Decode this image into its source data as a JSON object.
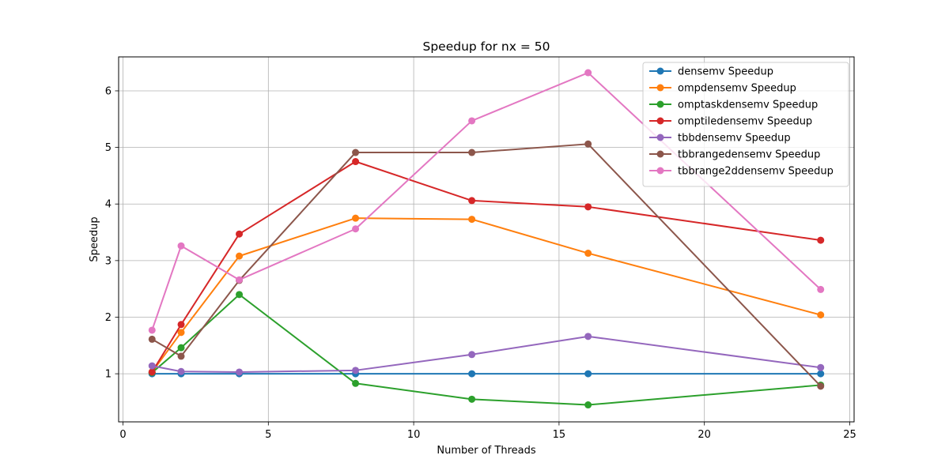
{
  "chart_data": {
    "type": "line",
    "title": "Speedup for nx = 50",
    "xlabel": "Number of Threads",
    "ylabel": "Speedup",
    "xlim": [
      -0.15,
      25.15
    ],
    "ylim": [
      0.15,
      6.6
    ],
    "x_ticks": [
      0,
      5,
      10,
      15,
      20,
      25
    ],
    "y_ticks": [
      1,
      2,
      3,
      4,
      5,
      6
    ],
    "grid": true,
    "legend_position": "top-right",
    "x": [
      1,
      2,
      4,
      8,
      12,
      16,
      24
    ],
    "series": [
      {
        "name": "densemv Speedup",
        "color": "#1f77b4",
        "values": [
          1.0,
          1.0,
          1.0,
          1.0,
          1.0,
          1.0,
          1.0
        ]
      },
      {
        "name": "ompdensemv Speedup",
        "color": "#ff7f0e",
        "values": [
          1.03,
          1.73,
          3.08,
          3.75,
          3.73,
          3.13,
          2.04
        ]
      },
      {
        "name": "omptaskdensemv Speedup",
        "color": "#2ca02c",
        "values": [
          1.02,
          1.46,
          2.4,
          0.83,
          0.55,
          0.45,
          0.8
        ]
      },
      {
        "name": "omptiledensemv Speedup",
        "color": "#d62728",
        "values": [
          1.03,
          1.87,
          3.47,
          4.75,
          4.06,
          3.95,
          3.36
        ]
      },
      {
        "name": "tbbdensemv Speedup",
        "color": "#9467bd",
        "values": [
          1.14,
          1.04,
          1.03,
          1.06,
          1.34,
          1.66,
          1.11
        ]
      },
      {
        "name": "tbbrangedensemv Speedup",
        "color": "#8c564b",
        "values": [
          1.61,
          1.31,
          2.65,
          4.91,
          4.91,
          5.06,
          0.78
        ]
      },
      {
        "name": "tbbrange2ddensemv Speedup",
        "color": "#e377c2",
        "values": [
          1.77,
          3.26,
          2.66,
          3.56,
          5.47,
          6.32,
          2.49
        ]
      }
    ]
  }
}
